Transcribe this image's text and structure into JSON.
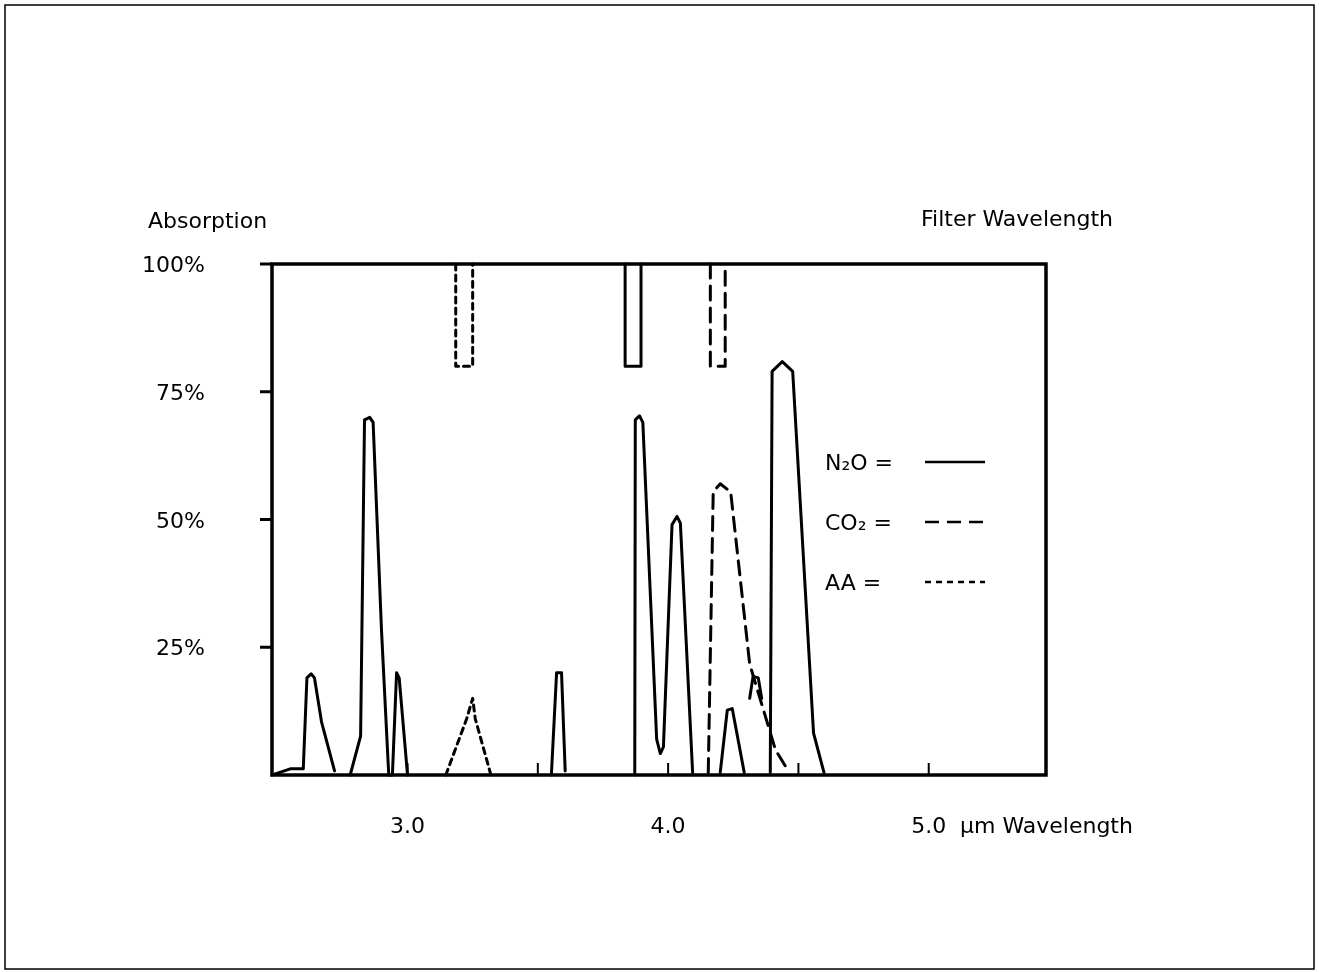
{
  "chart_data": {
    "type": "line",
    "ylabel": "Absorption",
    "xlabel": "µm Wavelength",
    "annotations": [
      "Filter Wavelength"
    ],
    "xlim": [
      2.48,
      5.45
    ],
    "ylim": [
      0,
      100
    ],
    "xticks": [
      {
        "value": 3.0,
        "label": "3.0"
      },
      {
        "value": 3.5,
        "label": null
      },
      {
        "value": 4.0,
        "label": "4.0"
      },
      {
        "value": 4.5,
        "label": null
      },
      {
        "value": 5.0,
        "label": "5.0"
      }
    ],
    "yticks": [
      {
        "value": 25,
        "label": "25%"
      },
      {
        "value": 50,
        "label": "50%"
      },
      {
        "value": 75,
        "label": "75%"
      },
      {
        "value": 100,
        "label": "100%"
      }
    ],
    "legend": "right",
    "marker": "none",
    "grid": false,
    "series": [
      {
        "name": "N₂O =",
        "color": "#000000",
        "line_style": "solid",
        "x": [
          2.48,
          2.51,
          2.55,
          2.6,
          2.614,
          2.63,
          2.643,
          2.67,
          2.72,
          2.75,
          2.78,
          2.82,
          2.835,
          2.855,
          2.868,
          2.9,
          2.928,
          2.942,
          2.958,
          2.968,
          2.995,
          3.0,
          3.3,
          3.552,
          3.572,
          3.591,
          3.605,
          3.7,
          3.872,
          3.874,
          3.89,
          3.903,
          3.956,
          3.97,
          3.982,
          4.015,
          4.034,
          4.047,
          4.094,
          4.15,
          4.2,
          4.227,
          4.246,
          4.292,
          4.3,
          4.313,
          4.326,
          4.346,
          4.359,
          4.37,
          4.392,
          4.399,
          4.438,
          4.478,
          4.558,
          4.598
        ],
        "values": [
          0,
          0.5,
          1.2,
          1.2,
          19,
          19.8,
          19,
          10.4,
          0.8,
          null,
          0,
          7.6,
          69.5,
          70,
          69,
          28.5,
          0,
          0,
          20,
          19,
          3,
          0,
          null,
          0,
          20,
          20,
          0.8,
          null,
          0,
          69.5,
          70.3,
          69,
          7,
          4.2,
          5.5,
          49,
          50.6,
          49.3,
          0.5,
          null,
          0.5,
          12.7,
          13,
          0.5,
          null,
          15,
          19.3,
          19,
          15,
          null,
          0.5,
          79,
          80.9,
          79,
          8.2,
          0.5
        ]
      },
      {
        "name": "CO₂ =",
        "color": "#000000",
        "line_style": "dashed",
        "x": [
          4.154,
          4.173,
          4.2,
          4.24,
          4.313,
          4.412,
          4.465
        ],
        "values": [
          0.5,
          55.4,
          57,
          55.4,
          21.7,
          4.9,
          0.5
        ]
      },
      {
        "name": "AA =",
        "color": "#000000",
        "line_style": "dotted",
        "x": [
          3.147,
          3.227,
          3.25,
          3.26,
          3.32
        ],
        "values": [
          0,
          11,
          15,
          11,
          0
        ]
      },
      {
        "color": "#000000",
        "line_style": "dotted",
        "x": [
          3.185,
          3.185,
          3.25,
          3.25
        ],
        "values": [
          100,
          80,
          80,
          100
        ]
      },
      {
        "color": "#000000",
        "line_style": "solid",
        "x": [
          3.835,
          3.835,
          3.896,
          3.896
        ],
        "values": [
          100,
          80,
          80,
          100
        ]
      },
      {
        "color": "#000000",
        "line_style": "dashed",
        "x": [
          4.162,
          4.162,
          4.219,
          4.219
        ],
        "values": [
          100,
          80,
          80,
          100
        ]
      }
    ]
  }
}
